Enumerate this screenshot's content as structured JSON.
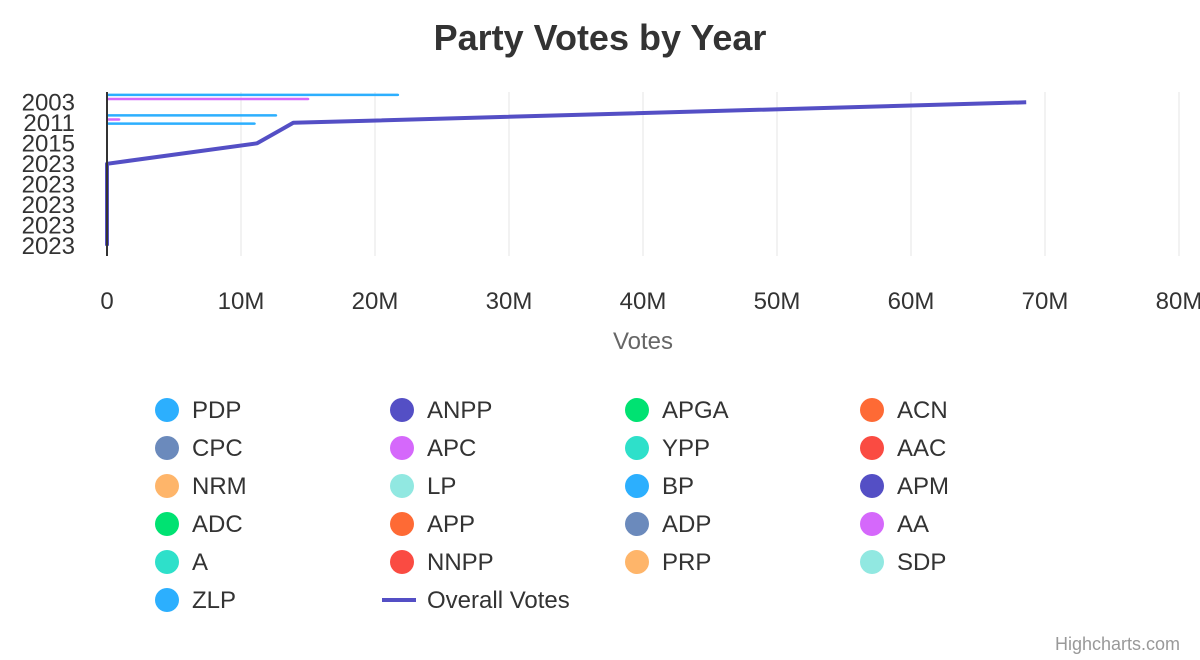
{
  "chart_data": {
    "type": "bar",
    "title": "Party Votes by Year",
    "xlabel": "Votes",
    "ylabel": "",
    "xlim": [
      0,
      80000000
    ],
    "x_ticks": [
      "0",
      "10M",
      "20M",
      "30M",
      "40M",
      "50M",
      "60M",
      "70M",
      "80M"
    ],
    "categories": [
      "2003",
      "2011",
      "2015",
      "2023",
      "2023",
      "2023",
      "2023",
      "2023"
    ],
    "grid": true,
    "legend_position": "bottom",
    "series": [
      {
        "name": "PDP",
        "color": "#2caffe",
        "values": [
          21800000,
          12700000,
          0,
          0,
          0,
          0,
          0,
          0
        ]
      },
      {
        "name": "ANPP",
        "color": "#544fc5",
        "values": [
          0,
          0,
          0,
          0,
          0,
          0,
          0,
          0
        ]
      },
      {
        "name": "APGA",
        "color": "#00e272",
        "values": [
          0,
          0,
          0,
          0,
          0,
          0,
          0,
          0
        ]
      },
      {
        "name": "ACN",
        "color": "#fe6a35",
        "values": [
          0,
          0,
          0,
          0,
          0,
          0,
          0,
          0
        ]
      },
      {
        "name": "CPC",
        "color": "#6b8abc",
        "values": [
          0,
          0,
          0,
          0,
          0,
          0,
          0,
          0
        ]
      },
      {
        "name": "APC",
        "color": "#d568fb",
        "values": [
          15100000,
          1000000,
          0,
          0,
          0,
          0,
          0,
          0
        ]
      },
      {
        "name": "YPP",
        "color": "#2ee0ca",
        "values": [
          0,
          0,
          0,
          0,
          0,
          0,
          0,
          0
        ]
      },
      {
        "name": "AAC",
        "color": "#fa4b42",
        "values": [
          0,
          0,
          0,
          0,
          0,
          0,
          0,
          0
        ]
      },
      {
        "name": "NRM",
        "color": "#feb56a",
        "values": [
          0,
          0,
          0,
          0,
          0,
          0,
          0,
          0
        ]
      },
      {
        "name": "LP",
        "color": "#91e8e1",
        "values": [
          0,
          0,
          0,
          0,
          0,
          0,
          0,
          0
        ]
      },
      {
        "name": "BP",
        "color": "#2caffe",
        "values": [
          0,
          11100000,
          0,
          0,
          0,
          0,
          0,
          0
        ]
      },
      {
        "name": "APM",
        "color": "#544fc5",
        "values": [
          0,
          0,
          0,
          0,
          0,
          0,
          0,
          0
        ]
      },
      {
        "name": "ADC",
        "color": "#00e272",
        "values": [
          0,
          0,
          0,
          0,
          0,
          0,
          0,
          0
        ]
      },
      {
        "name": "APP",
        "color": "#fe6a35",
        "values": [
          0,
          0,
          0,
          0,
          0,
          0,
          0,
          0
        ]
      },
      {
        "name": "ADP",
        "color": "#6b8abc",
        "values": [
          0,
          0,
          0,
          0,
          0,
          0,
          0,
          0
        ]
      },
      {
        "name": "AA",
        "color": "#d568fb",
        "values": [
          0,
          0,
          0,
          0,
          0,
          0,
          0,
          0
        ]
      },
      {
        "name": "A",
        "color": "#2ee0ca",
        "values": [
          0,
          0,
          0,
          0,
          0,
          0,
          0,
          0
        ]
      },
      {
        "name": "NNPP",
        "color": "#fa4b42",
        "values": [
          0,
          0,
          0,
          0,
          0,
          0,
          0,
          0
        ]
      },
      {
        "name": "PRP",
        "color": "#feb56a",
        "values": [
          0,
          0,
          0,
          0,
          0,
          0,
          0,
          0
        ]
      },
      {
        "name": "SDP",
        "color": "#91e8e1",
        "values": [
          0,
          0,
          0,
          0,
          0,
          0,
          0,
          0
        ]
      },
      {
        "name": "ZLP",
        "color": "#2caffe",
        "values": [
          0,
          0,
          0,
          0,
          0,
          0,
          0,
          0
        ]
      }
    ],
    "line_series": {
      "name": "Overall Votes",
      "color": "#544fc5",
      "values": [
        68600000,
        13900000,
        11200000,
        0,
        0,
        0,
        0,
        0
      ]
    },
    "credits": "Highcharts.com"
  }
}
